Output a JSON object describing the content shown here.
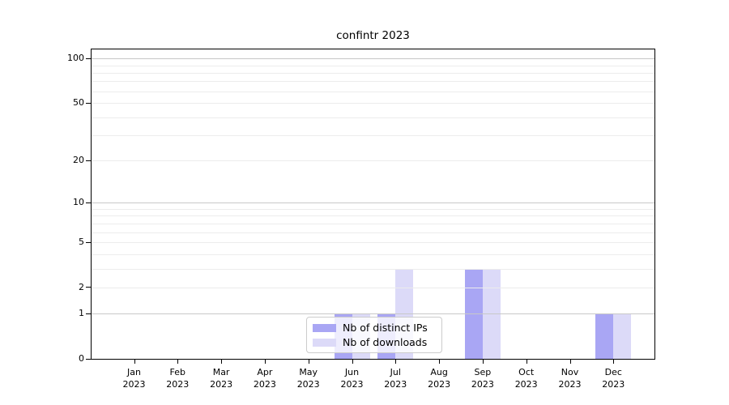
{
  "chart_data": {
    "type": "bar",
    "title": "confintr 2023",
    "categories": [
      "Jan 2023",
      "Feb 2023",
      "Mar 2023",
      "Apr 2023",
      "May 2023",
      "Jun 2023",
      "Jul 2023",
      "Aug 2023",
      "Sep 2023",
      "Oct 2023",
      "Nov 2023",
      "Dec 2023"
    ],
    "series": [
      {
        "name": "Nb of distinct IPs",
        "color": "#a9a6f4",
        "values": [
          0,
          0,
          0,
          0,
          0,
          1,
          1,
          0,
          3,
          0,
          0,
          1
        ]
      },
      {
        "name": "Nb of downloads",
        "color": "#dcdaf8",
        "values": [
          0,
          0,
          0,
          0,
          0,
          1,
          3,
          0,
          3,
          0,
          0,
          1
        ]
      }
    ],
    "y_scale": "log1p",
    "ylim": [
      0,
      115
    ],
    "y_tick_labels": [
      "0",
      "1",
      "2",
      "5",
      "10",
      "20",
      "50",
      "100"
    ],
    "y_ticks": [
      0,
      1,
      2,
      5,
      10,
      20,
      50,
      100
    ],
    "y_major_gridlines": [
      1,
      10,
      100
    ],
    "y_minor_gridlines": [
      2,
      3,
      4,
      5,
      6,
      7,
      8,
      9,
      20,
      30,
      40,
      50,
      60,
      70,
      80,
      90
    ],
    "grid": {
      "major_color": "#c8c8c8",
      "minor_color": "#ececec"
    },
    "legend_position": "inside lower center",
    "axis_color": "#000000",
    "background_color": "#ffffff"
  }
}
